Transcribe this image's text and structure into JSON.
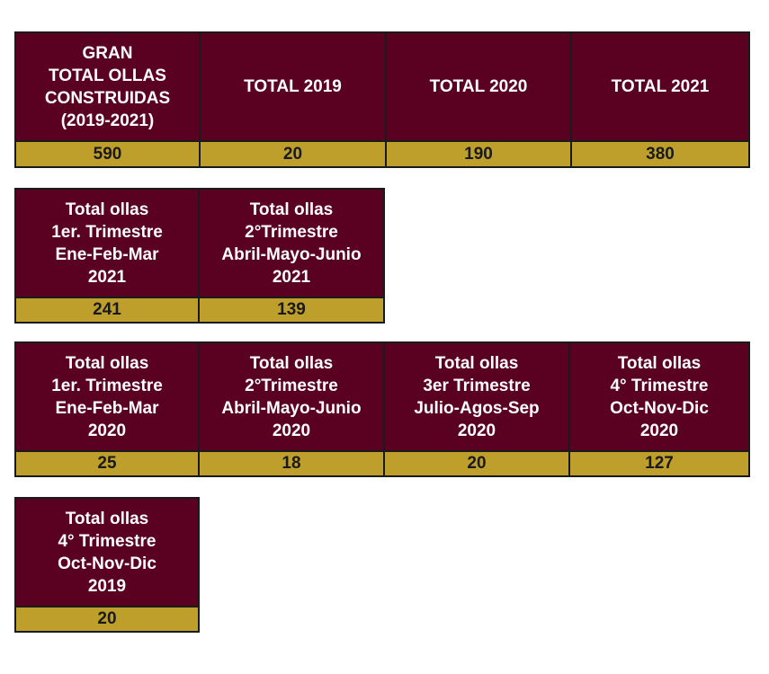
{
  "colors": {
    "header_bg": "#5a0020",
    "value_bg": "#bf9f2b",
    "border": "#1a1a1a"
  },
  "annual": [
    {
      "label": "GRAN\nTOTAL OLLAS\nCONSTRUIDAS\n(2019-2021)",
      "value": "590"
    },
    {
      "label": "TOTAL 2019",
      "value": "20"
    },
    {
      "label": "TOTAL 2020",
      "value": "190"
    },
    {
      "label": "TOTAL 2021",
      "value": "380"
    }
  ],
  "quarters_2021": [
    {
      "label": "Total ollas\n1er. Trimestre\nEne-Feb-Mar\n2021",
      "value": "241"
    },
    {
      "label": "Total ollas\n2°Trimestre\nAbril-Mayo-Junio\n2021",
      "value": "139"
    }
  ],
  "quarters_2020": [
    {
      "label": "Total ollas\n1er. Trimestre\nEne-Feb-Mar\n2020",
      "value": "25"
    },
    {
      "label": "Total ollas\n2°Trimestre\nAbril-Mayo-Junio\n2020",
      "value": "18"
    },
    {
      "label": "Total ollas\n3er Trimestre\nJulio-Agos-Sep\n2020",
      "value": "20"
    },
    {
      "label": "Total ollas\n4° Trimestre\nOct-Nov-Dic\n2020",
      "value": "127"
    }
  ],
  "quarters_2019": [
    {
      "label": "Total ollas\n4° Trimestre\nOct-Nov-Dic\n2019",
      "value": "20"
    }
  ]
}
